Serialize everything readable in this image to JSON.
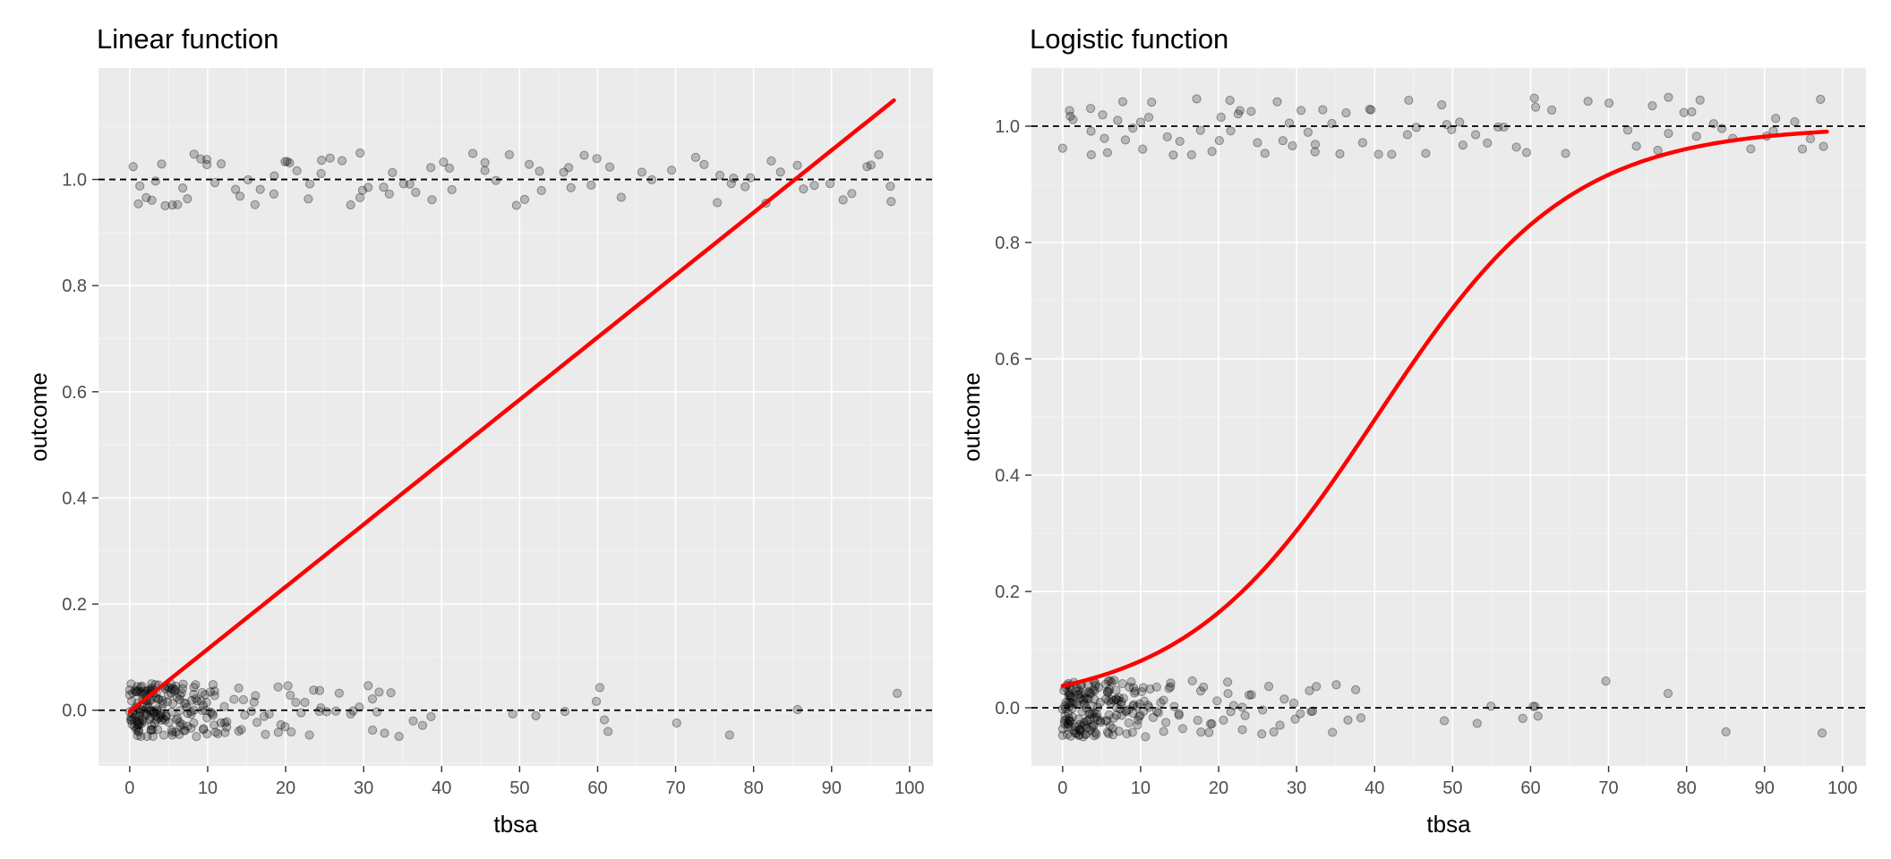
{
  "chart_data": [
    {
      "type": "scatter",
      "title": "Linear function",
      "xlabel": "tbsa",
      "ylabel": "outcome",
      "xlim": [
        -4,
        103
      ],
      "ylim": [
        -0.105,
        1.21
      ],
      "x_ticks": [
        0,
        10,
        20,
        30,
        40,
        50,
        60,
        70,
        80,
        90,
        100
      ],
      "x_tick_labels": [
        "0",
        "10",
        "20",
        "30",
        "40",
        "50",
        "60",
        "70",
        "80",
        "90",
        "100"
      ],
      "y_ticks": [
        0,
        0.2,
        0.4,
        0.6,
        0.8,
        1
      ],
      "y_tick_labels": [
        "0.0",
        "0.2",
        "0.4",
        "0.6",
        "0.8",
        "1.0"
      ],
      "grid": true,
      "reference_lines_y": [
        0,
        1
      ],
      "fit": {
        "model": "linear",
        "line_color": "#ff0000",
        "intercept": -0.0025,
        "slope": 0.01175,
        "x_range": [
          0,
          98
        ]
      },
      "points": {
        "color": "#000000",
        "opacity": 0.22,
        "outcome_0_x": [
          0,
          0,
          0.1,
          0.2,
          0.3,
          0.4,
          0.5,
          0.5,
          0.6,
          0.7,
          0.8,
          0.9,
          1,
          1,
          1.1,
          1.2,
          1.3,
          1.4,
          1.5,
          1.5,
          1.6,
          1.7,
          1.8,
          1.9,
          2,
          2,
          2.1,
          2.2,
          2.3,
          2.4,
          2.5,
          2.5,
          2.6,
          2.7,
          2.8,
          2.9,
          3,
          3,
          3.1,
          3.2,
          3.3,
          3.4,
          3.5,
          3.5,
          3.6,
          3.7,
          3.8,
          3.9,
          4,
          4,
          4.2,
          4.4,
          4.5,
          4.6,
          4.8,
          5,
          5,
          5.2,
          5.4,
          5.5,
          5.6,
          5.8,
          6,
          6,
          6.2,
          6.4,
          6.5,
          6.6,
          6.8,
          7,
          7,
          7.2,
          7.5,
          7.8,
          8,
          8,
          8.2,
          8.5,
          8.8,
          9,
          9,
          9.2,
          9.5,
          9.8,
          10,
          10,
          10.5,
          11,
          11,
          11.5,
          12,
          12,
          12.5,
          13,
          13,
          13.5,
          14,
          14,
          14.5,
          15,
          15,
          15.5,
          16,
          16.5,
          17,
          17.5,
          18,
          18,
          18.5,
          19,
          19.5,
          20,
          20,
          20.5,
          21,
          21.5,
          22,
          22.5,
          23,
          23.5,
          24,
          24.5,
          25,
          25.5,
          26,
          27,
          28,
          28.5,
          29,
          30,
          30.5,
          31,
          32,
          32.5,
          33,
          34,
          35,
          36,
          37,
          38,
          49.5,
          52.5,
          55.5,
          59.5,
          60,
          60.5,
          61,
          70,
          77,
          85,
          98
        ],
        "outcome_1_x": [
          0.5,
          1,
          1.5,
          2,
          3,
          3.5,
          4,
          4.5,
          5,
          6,
          7,
          8,
          8.5,
          9,
          10,
          10.5,
          11,
          12,
          13,
          14,
          15,
          16,
          17,
          18,
          19,
          19.5,
          20,
          21,
          22,
          22.5,
          23,
          24,
          25,
          26,
          27,
          28,
          29,
          29.5,
          30,
          31,
          32,
          33,
          34,
          35,
          36,
          37,
          38,
          39,
          40,
          41,
          42,
          44,
          45,
          46,
          47,
          48,
          49,
          50,
          51,
          52,
          53,
          55,
          56,
          57,
          58,
          59,
          60,
          61,
          63,
          65,
          67,
          70,
          72,
          74,
          75,
          76,
          77,
          78,
          79,
          80,
          81,
          82,
          84,
          85,
          86,
          88,
          90,
          91,
          92,
          94,
          95,
          96,
          97,
          98
        ],
        "jitter": 0.05
      }
    },
    {
      "type": "scatter",
      "title": "Logistic function",
      "xlabel": "tbsa",
      "ylabel": "outcome",
      "xlim": [
        -4,
        103
      ],
      "ylim": [
        -0.1,
        1.1
      ],
      "x_ticks": [
        0,
        10,
        20,
        30,
        40,
        50,
        60,
        70,
        80,
        90,
        100
      ],
      "x_tick_labels": [
        "0",
        "10",
        "20",
        "30",
        "40",
        "50",
        "60",
        "70",
        "80",
        "90",
        "100"
      ],
      "y_ticks": [
        0,
        0.2,
        0.4,
        0.6,
        0.8,
        1
      ],
      "y_tick_labels": [
        "0.0",
        "0.2",
        "0.4",
        "0.6",
        "0.8",
        "1.0"
      ],
      "grid": true,
      "reference_lines_y": [
        0,
        1
      ],
      "fit": {
        "model": "logistic",
        "line_color": "#ff0000",
        "intercept": -3.24,
        "slope": 0.0805,
        "x_range": [
          0,
          98
        ]
      },
      "points": {
        "color": "#000000",
        "opacity": 0.22,
        "outcome_0_x": [
          0,
          0,
          0.1,
          0.2,
          0.3,
          0.4,
          0.5,
          0.5,
          0.6,
          0.7,
          0.8,
          0.9,
          1,
          1,
          1.1,
          1.2,
          1.3,
          1.4,
          1.5,
          1.5,
          1.6,
          1.7,
          1.8,
          1.9,
          2,
          2,
          2.1,
          2.2,
          2.3,
          2.4,
          2.5,
          2.5,
          2.6,
          2.7,
          2.8,
          2.9,
          3,
          3,
          3.1,
          3.2,
          3.3,
          3.4,
          3.5,
          3.5,
          3.6,
          3.7,
          3.8,
          3.9,
          4,
          4,
          4.2,
          4.4,
          4.5,
          4.6,
          4.8,
          5,
          5,
          5.2,
          5.4,
          5.5,
          5.6,
          5.8,
          6,
          6,
          6.2,
          6.4,
          6.5,
          6.6,
          6.8,
          7,
          7,
          7.2,
          7.5,
          7.8,
          8,
          8,
          8.2,
          8.5,
          8.8,
          9,
          9,
          9.2,
          9.5,
          9.8,
          10,
          10,
          10.5,
          11,
          11,
          11.5,
          12,
          12,
          12.5,
          13,
          13,
          13.5,
          14,
          14,
          14.5,
          15,
          15,
          15.5,
          16,
          16.5,
          17,
          17.5,
          18,
          18,
          18.5,
          19,
          19.5,
          20,
          20,
          20.5,
          21,
          21.5,
          22,
          22.5,
          23,
          23.5,
          24,
          24.5,
          25,
          25.5,
          26,
          27,
          28,
          28.5,
          29,
          30,
          30.5,
          31,
          32,
          32.5,
          33,
          34,
          35,
          36,
          37,
          38,
          49.5,
          52.5,
          55.5,
          59.5,
          60,
          60.5,
          61,
          70,
          77,
          85,
          98
        ],
        "outcome_1_x": [
          0.5,
          1,
          1.5,
          2,
          3,
          3.5,
          4,
          4.5,
          5,
          6,
          7,
          8,
          8.5,
          9,
          10,
          10.5,
          11,
          12,
          13,
          14,
          15,
          16,
          17,
          18,
          19,
          19.5,
          20,
          21,
          22,
          22.5,
          23,
          24,
          25,
          26,
          27,
          28,
          29,
          29.5,
          30,
          31,
          32,
          33,
          34,
          35,
          36,
          37,
          38,
          39,
          40,
          41,
          42,
          44,
          45,
          46,
          47,
          48,
          49,
          50,
          51,
          52,
          53,
          55,
          56,
          57,
          58,
          59,
          60,
          61,
          63,
          65,
          67,
          70,
          72,
          74,
          75,
          76,
          77,
          78,
          79,
          80,
          81,
          82,
          84,
          85,
          86,
          88,
          90,
          91,
          92,
          94,
          95,
          96,
          97,
          98
        ],
        "jitter": 0.05
      }
    }
  ]
}
